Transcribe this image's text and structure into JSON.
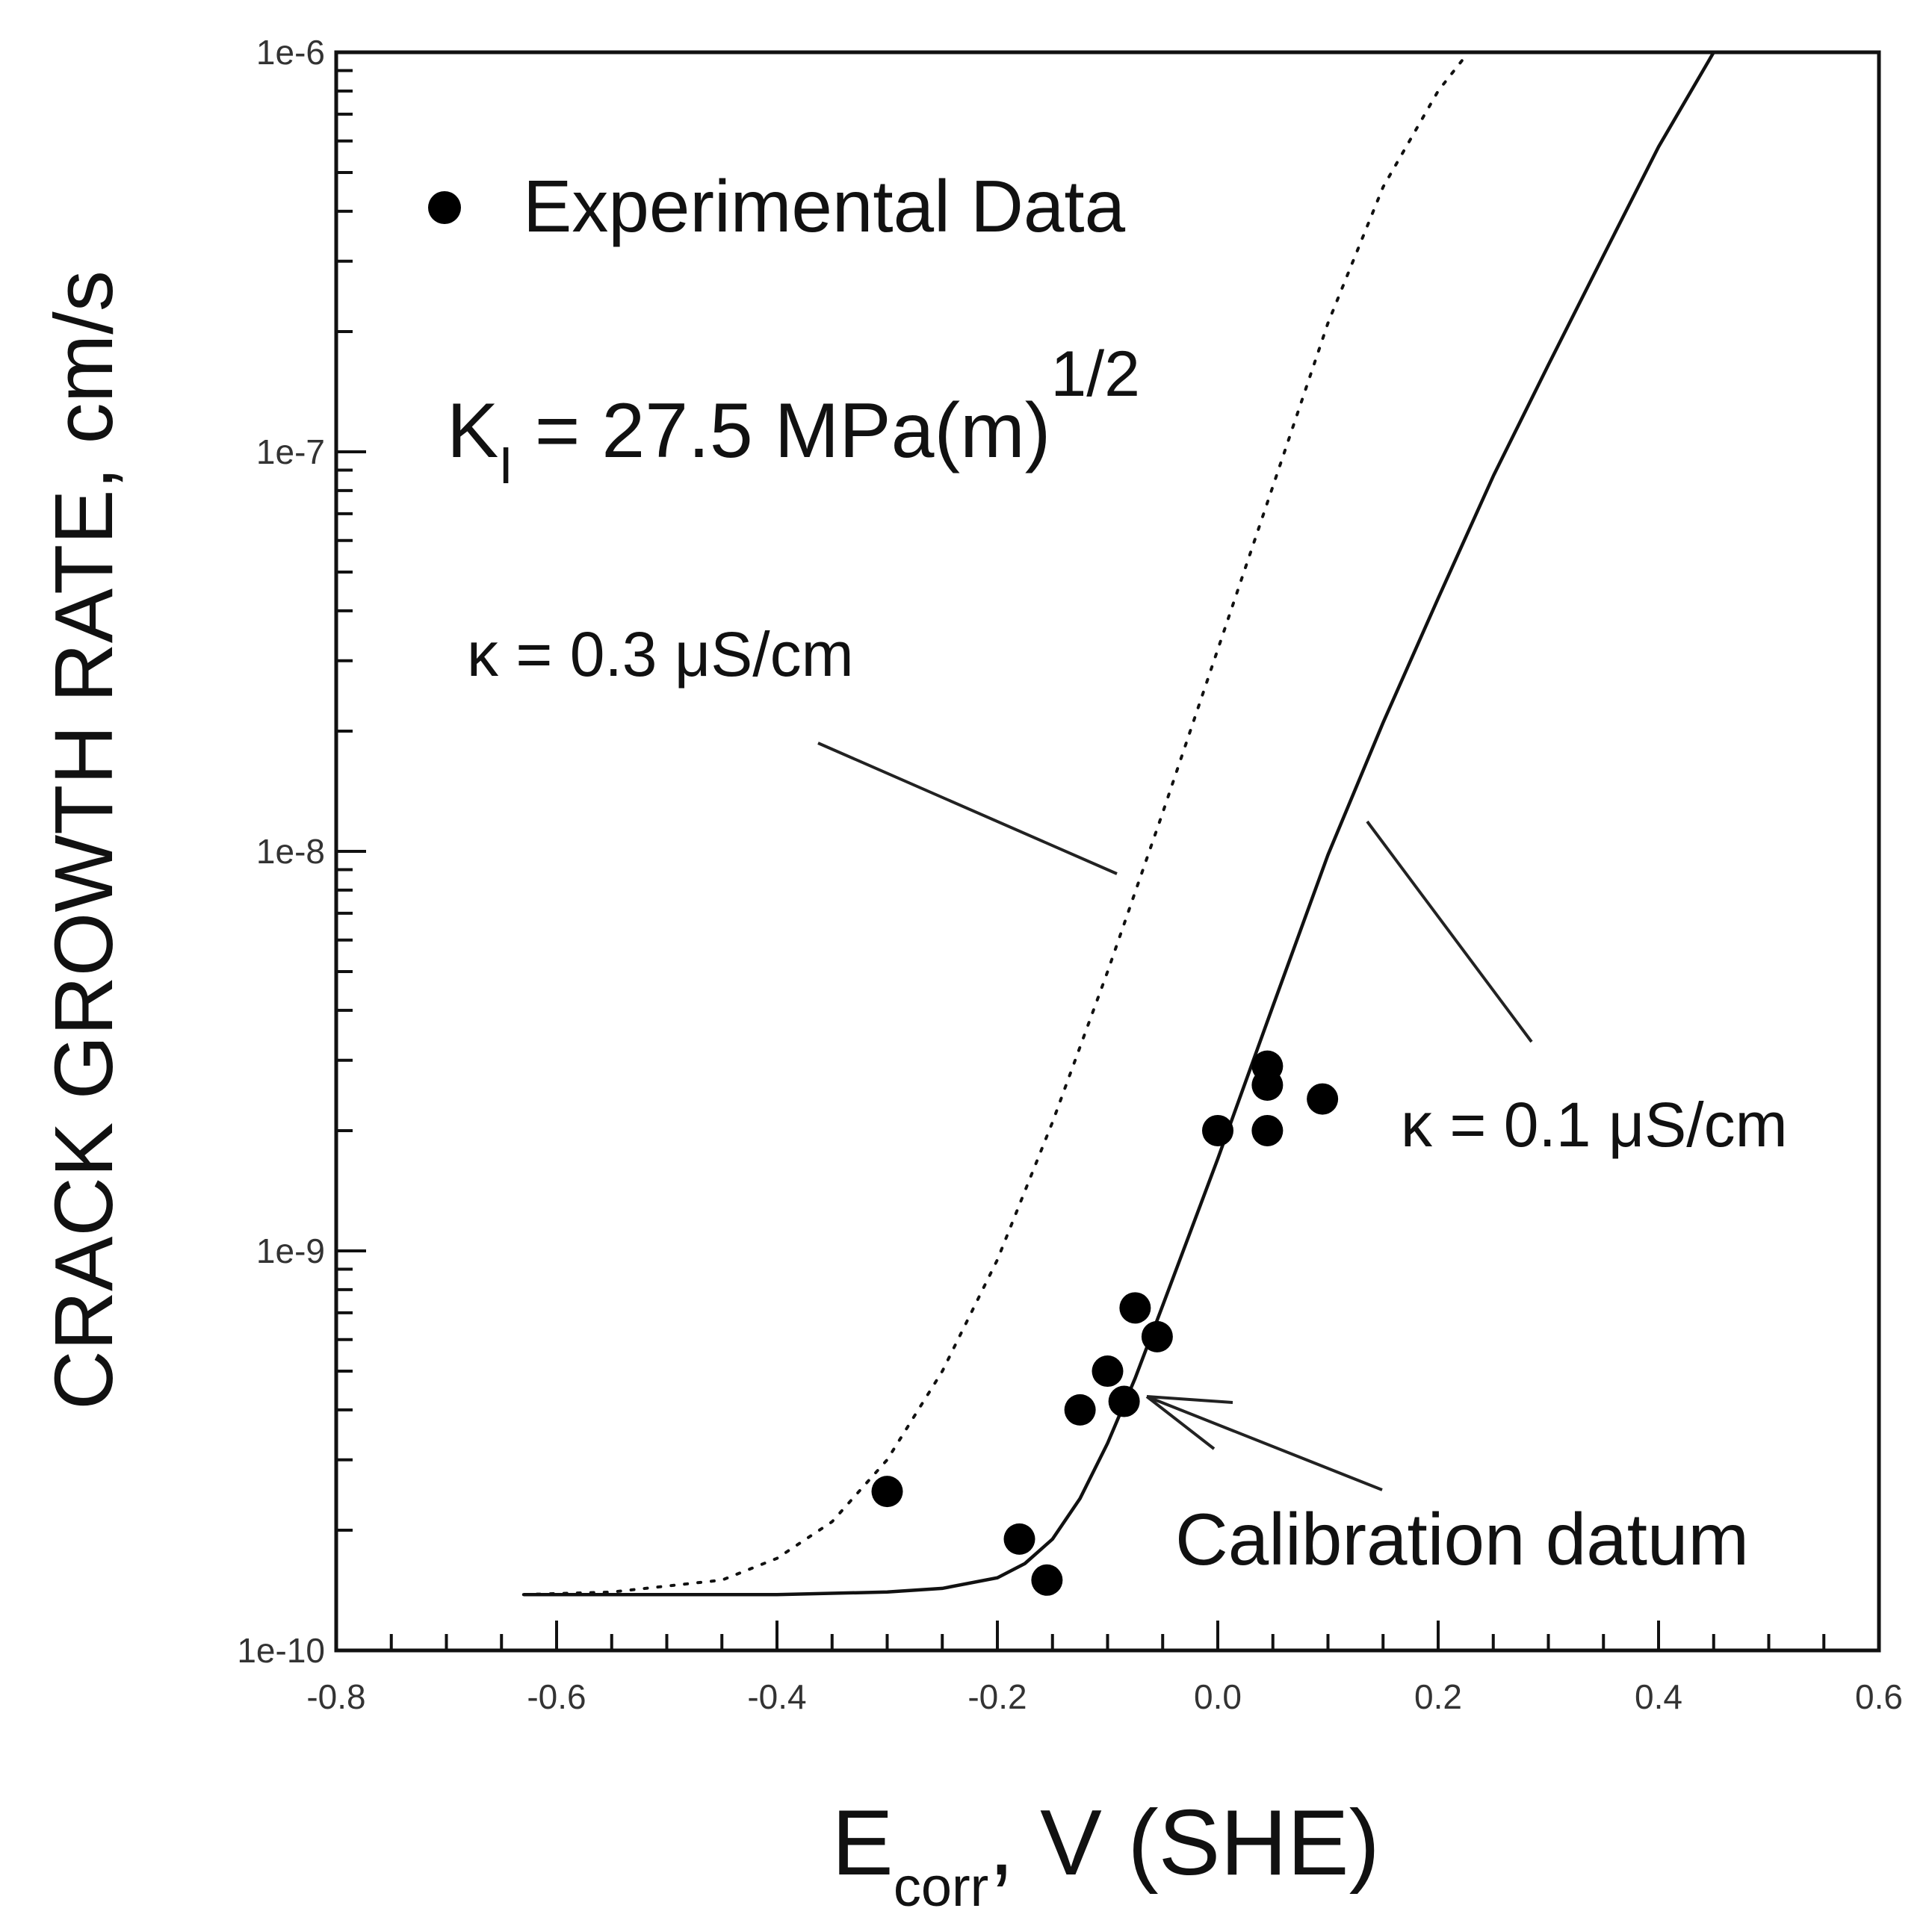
{
  "chart_data": {
    "type": "scatter",
    "title": "",
    "xlabel_main": "E",
    "xlabel_sub": "corr",
    "xlabel_suffix": ",  V (SHE)",
    "ylabel": "CRACK GROWTH RATE,  cm/s",
    "xlim": [
      -0.8,
      0.6
    ],
    "ylim": [
      1e-10,
      1e-06
    ],
    "yscale": "log",
    "x_ticks": [
      -0.8,
      -0.6,
      -0.4,
      -0.2,
      0.0,
      0.2,
      0.4,
      0.6
    ],
    "x_tick_labels": [
      "-0.8",
      "-0.6",
      "-0.4",
      "-0.2",
      "0.0",
      "0.2",
      "0.4",
      "0.6"
    ],
    "y_ticks": [
      1e-10,
      1e-09,
      1e-08,
      1e-07,
      1e-06
    ],
    "y_tick_labels": [
      "1e-10",
      "1e-9",
      "1e-8",
      "1e-7",
      "1e-6"
    ],
    "legend": {
      "marker": "filled-circle",
      "label": "Experimental Data",
      "placement": "top-left"
    },
    "annotations": {
      "k_prefix": "K",
      "k_sub": "I",
      "k_mid": " = 27.5 MPa(m)",
      "k_sup": "1/2",
      "kappa_dotted": "κ = 0.3 μS/cm",
      "kappa_solid": "κ = 0.1 μS/cm",
      "calibration": "Calibration datum"
    },
    "experimental_points": [
      {
        "x": -0.3,
        "y": 2.5e-10
      },
      {
        "x": -0.18,
        "y": 1.9e-10
      },
      {
        "x": -0.155,
        "y": 1.5e-10
      },
      {
        "x": -0.125,
        "y": 4e-10
      },
      {
        "x": -0.1,
        "y": 5e-10
      },
      {
        "x": -0.085,
        "y": 4.2e-10
      },
      {
        "x": -0.075,
        "y": 7.2e-10
      },
      {
        "x": -0.055,
        "y": 6.1e-10
      },
      {
        "x": 0.0,
        "y": 2e-09
      },
      {
        "x": 0.045,
        "y": 2.9e-09
      },
      {
        "x": 0.045,
        "y": 2.6e-09
      },
      {
        "x": 0.045,
        "y": 2e-09
      },
      {
        "x": 0.095,
        "y": 2.4e-09
      }
    ],
    "series": [
      {
        "name": "κ = 0.3 μS/cm",
        "style": "dotted",
        "x": [
          -0.63,
          -0.55,
          -0.45,
          -0.4,
          -0.35,
          -0.3,
          -0.25,
          -0.2,
          -0.15,
          -0.1,
          -0.05,
          0.0,
          0.05,
          0.1,
          0.15,
          0.2,
          0.225
        ],
        "y": [
          1.38e-10,
          1.4e-10,
          1.5e-10,
          1.7e-10,
          2.1e-10,
          3e-10,
          5e-10,
          9.5e-10,
          2.1e-09,
          5e-09,
          1.25e-08,
          3.2e-08,
          8.2e-08,
          2.1e-07,
          4.6e-07,
          8e-07,
          9.8e-07
        ]
      },
      {
        "name": "κ = 0.1 μS/cm",
        "style": "solid",
        "x": [
          -0.63,
          -0.4,
          -0.3,
          -0.25,
          -0.2,
          -0.175,
          -0.15,
          -0.125,
          -0.1,
          -0.075,
          -0.05,
          0.0,
          0.05,
          0.1,
          0.15,
          0.2,
          0.25,
          0.3,
          0.35,
          0.4,
          0.45
        ],
        "y": [
          1.38e-10,
          1.38e-10,
          1.4e-10,
          1.43e-10,
          1.52e-10,
          1.65e-10,
          1.9e-10,
          2.4e-10,
          3.3e-10,
          4.8e-10,
          7.3e-10,
          1.7e-09,
          4.1e-09,
          9.8e-09,
          2.1e-08,
          4.3e-08,
          8.7e-08,
          1.65e-07,
          3.1e-07,
          5.8e-07,
          1e-06
        ]
      }
    ]
  }
}
